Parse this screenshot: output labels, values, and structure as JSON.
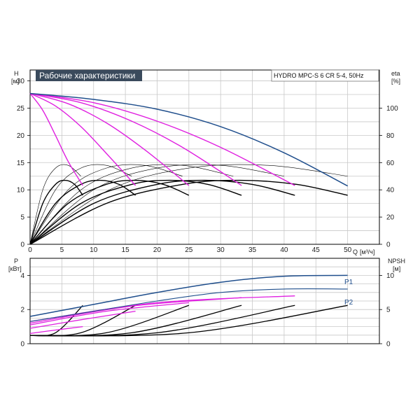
{
  "title": "Рабочие характеристики",
  "model": "HYDRO MPC-S 6 CR 5-4, 50Hz",
  "colors": {
    "grid": "#c8c8c8",
    "axis": "#000000",
    "title_bg": "#3a4a5c",
    "head_max": "#1f4e8c",
    "speed_curves": "#e020e0",
    "eff_curves": "#000000",
    "thin_curves": "#000000",
    "npsh_label": "#1f4e8c"
  },
  "chart_data": [
    {
      "type": "line",
      "name": "head",
      "ylabel": "H",
      "yunit": "[м]",
      "y2label": "eta",
      "y2unit": "[%]",
      "xlabel": "Q",
      "xunit": "[м³/ч]",
      "xlim": [
        0,
        55
      ],
      "ylim": [
        0,
        32
      ],
      "y2lim": [
        0,
        128
      ],
      "x_ticks": [
        0,
        5,
        10,
        15,
        20,
        25,
        30,
        35,
        40,
        45,
        50
      ],
      "x_tick_labels": [
        "0",
        "5",
        "10",
        "15",
        "20",
        "25",
        "30",
        "35",
        "40",
        "45",
        "50"
      ],
      "y_ticks": [
        0,
        5,
        10,
        15,
        20,
        25,
        30
      ],
      "y_tick_labels": [
        "0",
        "5",
        "10",
        "15",
        "20",
        "25",
        "30"
      ],
      "y2_ticks": [
        0,
        20,
        40,
        60,
        80,
        100
      ],
      "y2_tick_labels": [
        "0",
        "20",
        "40",
        "60",
        "80",
        "100"
      ],
      "grid": true,
      "max_curve": {
        "q": [
          0,
          10,
          20,
          30,
          40,
          50
        ],
        "h": [
          27.7,
          26.6,
          24.8,
          21.6,
          16.8,
          10.7
        ]
      },
      "pump_curves": [
        {
          "pumps": 1,
          "q": [
            0,
            2,
            4,
            6,
            8.3
          ],
          "h": [
            27.7,
            24.6,
            20.0,
            15.2,
            10.8
          ]
        },
        {
          "pumps": 2,
          "q": [
            0,
            4,
            8,
            12,
            16.6
          ],
          "h": [
            27.7,
            25.4,
            21.6,
            16.7,
            10.8
          ]
        },
        {
          "pumps": 3,
          "q": [
            0,
            6,
            12,
            18,
            25
          ],
          "h": [
            27.7,
            25.8,
            22.3,
            17.4,
            10.8
          ]
        },
        {
          "pumps": 4,
          "q": [
            0,
            8,
            16,
            24,
            33.3
          ],
          "h": [
            27.7,
            26.0,
            22.6,
            17.8,
            10.8
          ]
        },
        {
          "pumps": 5,
          "q": [
            0,
            10,
            20,
            30,
            41.7
          ],
          "h": [
            27.7,
            26.0,
            22.6,
            17.8,
            10.8
          ]
        }
      ],
      "eff_curves_bold": [
        {
          "q": [
            0,
            2,
            4,
            5.5,
            7,
            8.3
          ],
          "eta": [
            0,
            30,
            44,
            47,
            44,
            36
          ]
        },
        {
          "q": [
            0,
            4,
            8,
            11,
            14,
            16.6
          ],
          "eta": [
            0,
            30,
            44,
            47,
            44,
            36
          ]
        },
        {
          "q": [
            0,
            6,
            12,
            16.5,
            21,
            25
          ],
          "eta": [
            0,
            30,
            44,
            47,
            44,
            36
          ]
        },
        {
          "q": [
            0,
            8,
            16,
            22,
            28,
            33.3
          ],
          "eta": [
            0,
            30,
            44,
            47,
            44,
            36
          ]
        },
        {
          "q": [
            0,
            10,
            20,
            27.5,
            35,
            41.7
          ],
          "eta": [
            0,
            30,
            44,
            47,
            44,
            36
          ]
        },
        {
          "q": [
            0,
            12,
            24,
            33,
            42,
            50
          ],
          "eta": [
            0,
            30,
            44,
            47,
            44,
            36
          ]
        }
      ],
      "eff_curves_thin": [
        {
          "q": [
            0,
            2,
            4,
            6,
            8
          ],
          "eta": [
            0,
            40,
            56,
            58,
            50
          ]
        },
        {
          "q": [
            0,
            4,
            8,
            12,
            16
          ],
          "eta": [
            0,
            40,
            56,
            58,
            50
          ]
        },
        {
          "q": [
            0,
            6,
            12,
            18,
            24
          ],
          "eta": [
            0,
            40,
            56,
            58,
            50
          ]
        },
        {
          "q": [
            0,
            8,
            16,
            24,
            32
          ],
          "eta": [
            0,
            40,
            56,
            58,
            50
          ]
        },
        {
          "q": [
            0,
            10,
            20,
            30,
            40
          ],
          "eta": [
            0,
            40,
            56,
            58,
            50
          ]
        },
        {
          "q": [
            0,
            12.5,
            25,
            37.5,
            50
          ],
          "eta": [
            0,
            40,
            56,
            58,
            50
          ]
        }
      ]
    },
    {
      "type": "line",
      "name": "power",
      "ylabel": "P",
      "yunit": "[кВт]",
      "y2label": "NPSH",
      "y2unit": "[м]",
      "xlim": [
        0,
        55
      ],
      "ylim": [
        0,
        5
      ],
      "y2lim": [
        0,
        12.5
      ],
      "y_ticks": [
        0,
        2,
        4
      ],
      "y_tick_labels": [
        "0",
        "2",
        "4"
      ],
      "y2_ticks": [
        0,
        5,
        10
      ],
      "y2_tick_labels": [
        "0",
        "5",
        "10"
      ],
      "grid": true,
      "series_labels": [
        "P1",
        "P2"
      ],
      "p1": {
        "q": [
          0,
          10,
          20,
          30,
          40,
          50
        ],
        "p": [
          1.6,
          2.3,
          3.0,
          3.6,
          3.95,
          4.0
        ]
      },
      "p2": {
        "q": [
          0,
          10,
          20,
          30,
          40,
          50
        ],
        "p": [
          1.3,
          1.9,
          2.5,
          3.0,
          3.2,
          3.2
        ]
      },
      "pump_p": [
        {
          "q": [
            0,
            4,
            8.3
          ],
          "p": [
            0.6,
            0.8,
            1.0
          ]
        },
        {
          "q": [
            0,
            8,
            16.6
          ],
          "p": [
            0.9,
            1.4,
            1.9
          ]
        },
        {
          "q": [
            0,
            12,
            25
          ],
          "p": [
            1.1,
            1.9,
            2.4
          ]
        },
        {
          "q": [
            0,
            16,
            33.3
          ],
          "p": [
            1.2,
            2.2,
            2.7
          ]
        },
        {
          "q": [
            0,
            20,
            41.7
          ],
          "p": [
            1.3,
            2.4,
            2.8
          ]
        }
      ],
      "npsh_bold": [
        {
          "q": [
            0,
            4,
            8.3
          ],
          "n": [
            1.2,
            1.6,
            5.6
          ]
        },
        {
          "q": [
            0,
            8,
            16.6
          ],
          "n": [
            1.2,
            1.6,
            5.6
          ]
        },
        {
          "q": [
            0,
            12,
            25
          ],
          "n": [
            1.2,
            1.6,
            5.6
          ]
        },
        {
          "q": [
            0,
            16,
            33.3
          ],
          "n": [
            1.2,
            1.6,
            5.6
          ]
        },
        {
          "q": [
            0,
            20,
            41.7
          ],
          "n": [
            1.2,
            1.6,
            5.6
          ]
        },
        {
          "q": [
            0,
            25,
            50
          ],
          "n": [
            1.2,
            1.6,
            5.6
          ]
        }
      ]
    }
  ]
}
